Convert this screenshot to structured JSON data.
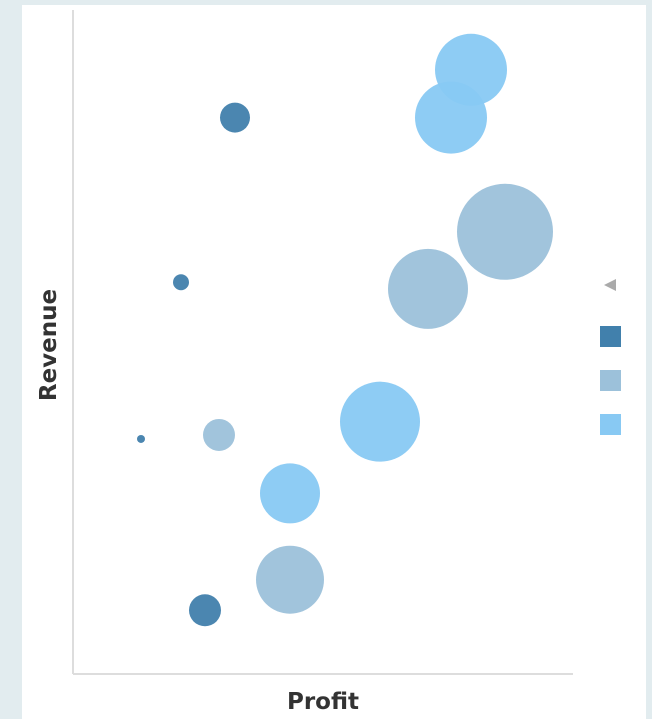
{
  "chart_data": {
    "type": "scatter",
    "subtype": "bubble",
    "xlabel": "Profit",
    "ylabel": "Revenue",
    "xlim": [
      0,
      100
    ],
    "ylim": [
      0,
      100
    ],
    "grid": false,
    "legend_position": "right",
    "series": [
      {
        "color": "#4180ac",
        "points": [
          {
            "x": 32.4,
            "y": 83.8,
            "size": 15
          },
          {
            "x": 21.6,
            "y": 59.0,
            "size": 8
          },
          {
            "x": 13.6,
            "y": 35.4,
            "size": 4
          },
          {
            "x": 26.4,
            "y": 9.6,
            "size": 16
          }
        ]
      },
      {
        "color": "#9cc1da",
        "points": [
          {
            "x": 86.4,
            "y": 66.6,
            "size": 48
          },
          {
            "x": 71.0,
            "y": 58.0,
            "size": 40
          },
          {
            "x": 29.2,
            "y": 36.0,
            "size": 16
          },
          {
            "x": 43.4,
            "y": 14.2,
            "size": 34
          }
        ]
      },
      {
        "color": "#88c9f3",
        "points": [
          {
            "x": 79.6,
            "y": 91.0,
            "size": 36
          },
          {
            "x": 75.6,
            "y": 83.8,
            "size": 36
          },
          {
            "x": 61.4,
            "y": 38.0,
            "size": 40
          },
          {
            "x": 43.4,
            "y": 27.2,
            "size": 30
          }
        ]
      }
    ]
  }
}
